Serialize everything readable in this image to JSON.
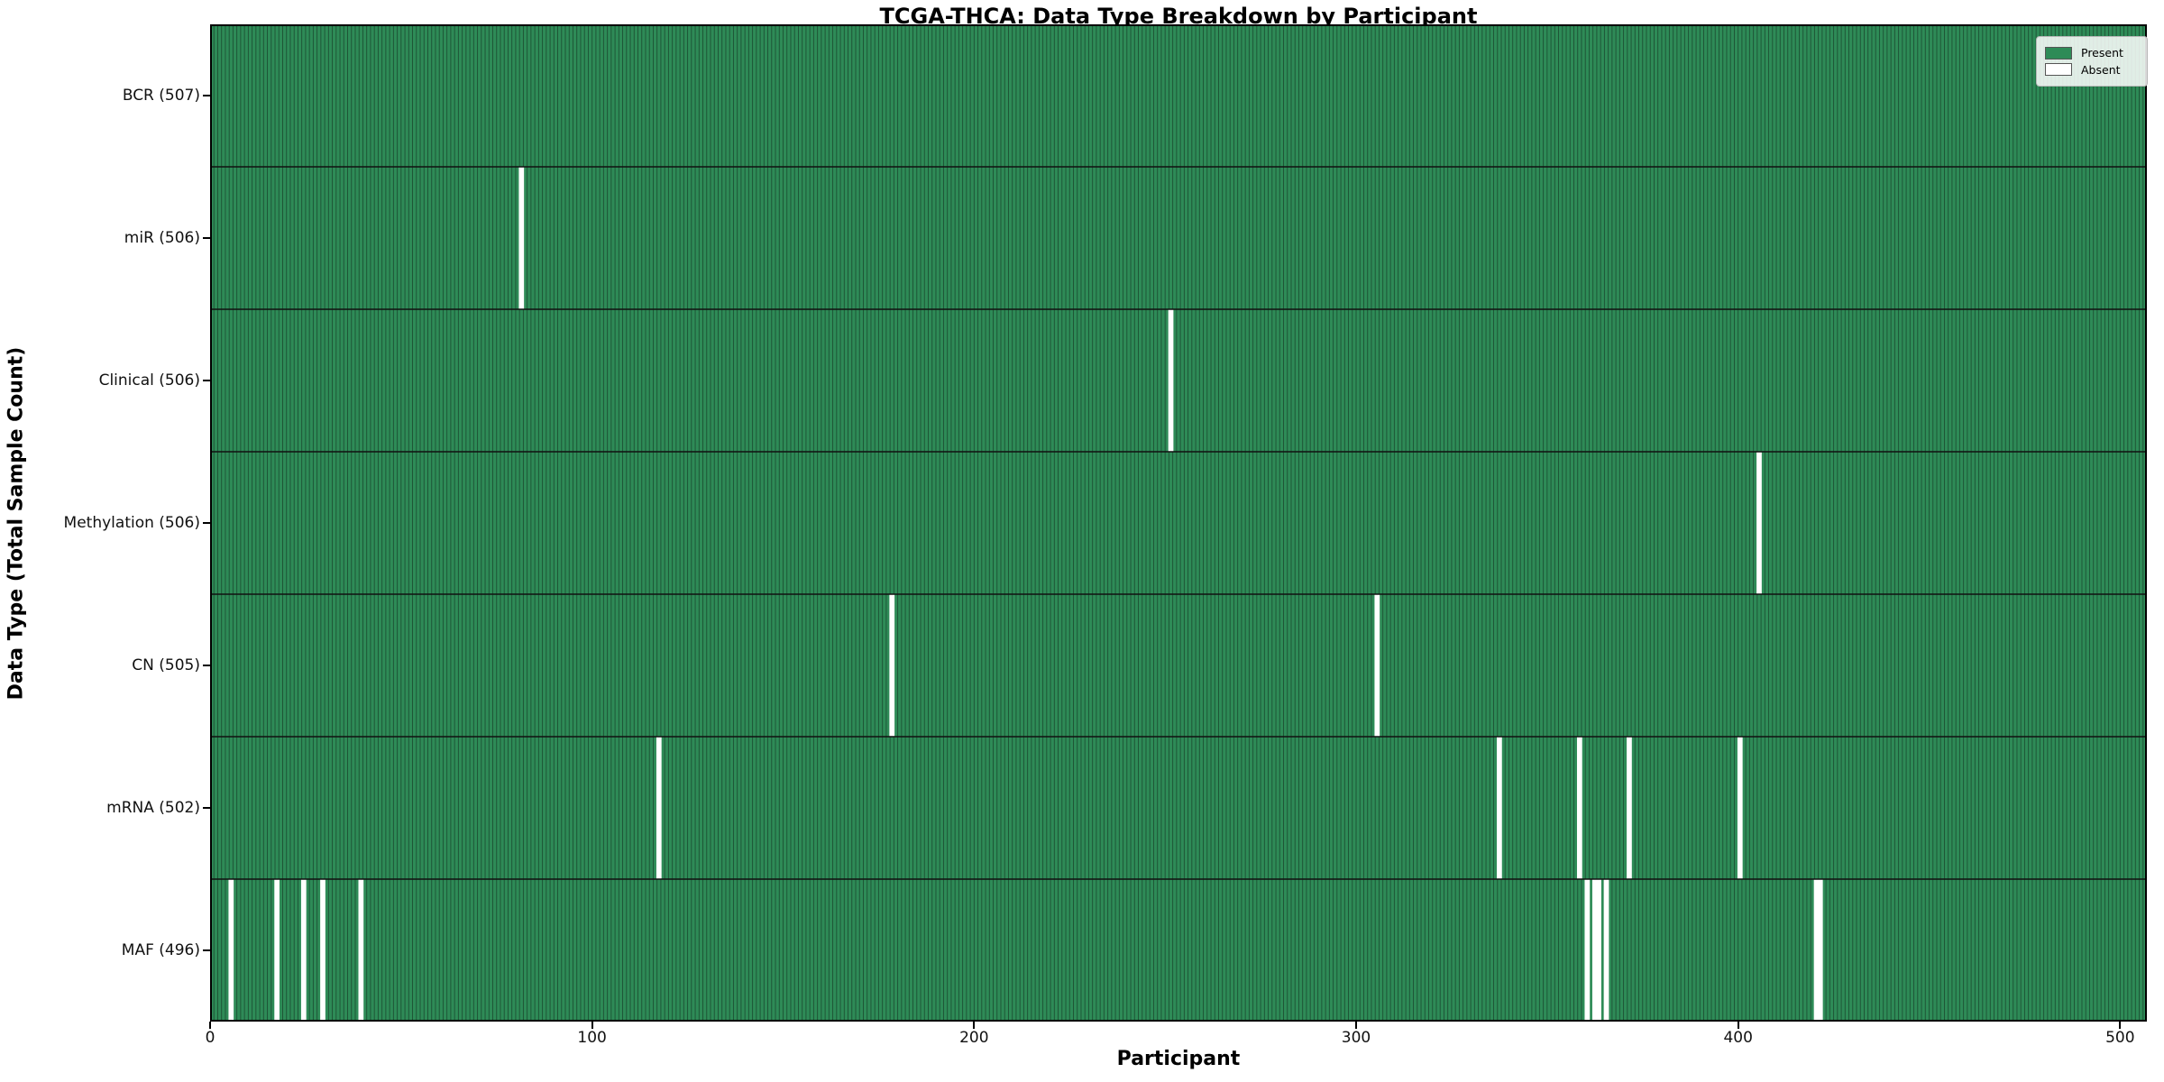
{
  "chart_data": {
    "type": "heatmap",
    "title": "TCGA-THCA: Data Type Breakdown by Participant",
    "xlabel": "Participant",
    "ylabel": "Data Type (Total Sample Count)",
    "n_participants": 507,
    "x_axis_range": [
      0,
      507
    ],
    "x_ticks": [
      0,
      100,
      200,
      300,
      400,
      500
    ],
    "grid": false,
    "legend": {
      "position": "upper right",
      "entries": [
        {
          "label": "Present",
          "color": "#2e8b57"
        },
        {
          "label": "Absent",
          "color": "#ffffff"
        }
      ]
    },
    "colors": {
      "present": "#2e8b57",
      "absent": "#ffffff",
      "cell_edge": "#1d5134",
      "row_separator": "#111111",
      "plot_border": "#000000"
    },
    "rows": [
      {
        "label": "BCR (507)",
        "data_type": "BCR",
        "present_count": 507,
        "absent_count": 0,
        "absent_participants": []
      },
      {
        "label": "miR (506)",
        "data_type": "miR",
        "present_count": 506,
        "absent_count": 1,
        "absent_participants": [
          81
        ]
      },
      {
        "label": "Clinical (506)",
        "data_type": "Clinical",
        "present_count": 506,
        "absent_count": 1,
        "absent_participants": [
          251
        ]
      },
      {
        "label": "Methylation (506)",
        "data_type": "Methylation",
        "present_count": 506,
        "absent_count": 1,
        "absent_participants": [
          405
        ]
      },
      {
        "label": "CN (505)",
        "data_type": "CN",
        "present_count": 505,
        "absent_count": 2,
        "absent_participants": [
          178,
          305
        ]
      },
      {
        "label": "mRNA (502)",
        "data_type": "mRNA",
        "present_count": 502,
        "absent_count": 5,
        "absent_participants": [
          117,
          337,
          358,
          371,
          400
        ]
      },
      {
        "label": "MAF (496)",
        "data_type": "MAF",
        "present_count": 496,
        "absent_count": 11,
        "absent_participants": [
          5,
          17,
          24,
          29,
          39,
          360,
          362,
          363,
          365,
          420,
          421
        ]
      }
    ]
  }
}
